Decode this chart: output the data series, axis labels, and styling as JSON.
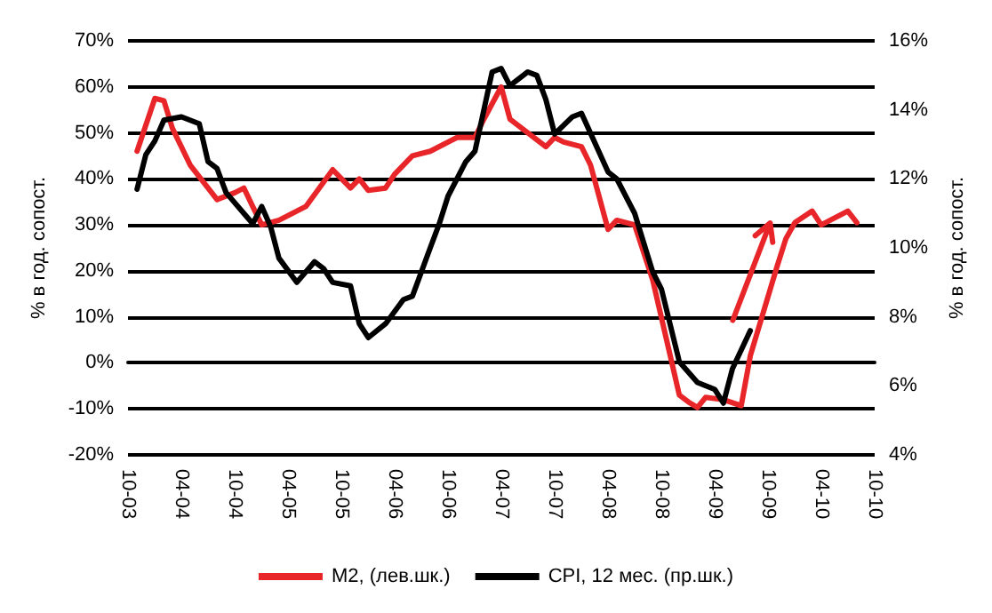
{
  "chart_data": {
    "type": "line",
    "ylabel": "% в год. сопост.",
    "y2label": "% в год. сопост.",
    "series": [
      {
        "name": "M2, (лев.шк.)",
        "color": "#e8262a",
        "axis": "y",
        "x": [
          "2003-11",
          "2004-01",
          "2004-02",
          "2004-03",
          "2004-05",
          "2004-08",
          "2004-10",
          "2004-11",
          "2004-12",
          "2005-01",
          "2005-03",
          "2005-06",
          "2005-09",
          "2005-11",
          "2005-12",
          "2006-01",
          "2006-03",
          "2006-04",
          "2006-06",
          "2006-08",
          "2006-11",
          "2007-01",
          "2007-02",
          "2007-04",
          "2007-05",
          "2007-09",
          "2007-10",
          "2007-11",
          "2008-01",
          "2008-02",
          "2008-04",
          "2008-05",
          "2008-07",
          "2008-09",
          "2008-12",
          "2009-01",
          "2009-02",
          "2009-03",
          "2009-05",
          "2009-07",
          "2009-08",
          "2009-11",
          "2009-12",
          "2010-01",
          "2010-03",
          "2010-04",
          "2010-07",
          "2010-08"
        ],
        "values": [
          46,
          57.5,
          57,
          51,
          43,
          35.5,
          37,
          38,
          34,
          30,
          31,
          34,
          42,
          38,
          40,
          37.5,
          38,
          41,
          45,
          46,
          49,
          49,
          53,
          60,
          53,
          47,
          49,
          48,
          47,
          43,
          29,
          31,
          30,
          18,
          -7,
          -8.5,
          -9.7,
          -7.5,
          -8,
          -9.3,
          1.5,
          21,
          27,
          30.5,
          33,
          30,
          33,
          30.5
        ]
      },
      {
        "name": "CPI, 12 мес. (пр.шк.)",
        "color": "#000000",
        "axis": "y2",
        "x": [
          "2003-11",
          "2003-12",
          "2004-01",
          "2004-02",
          "2004-04",
          "2004-06",
          "2004-07",
          "2004-08",
          "2004-09",
          "2004-12",
          "2005-01",
          "2005-02",
          "2005-03",
          "2005-05",
          "2005-07",
          "2005-08",
          "2005-09",
          "2005-11",
          "2005-12",
          "2006-01",
          "2006-03",
          "2006-05",
          "2006-06",
          "2006-08",
          "2006-09",
          "2006-10",
          "2006-12",
          "2007-01",
          "2007-03",
          "2007-04",
          "2007-05",
          "2007-07",
          "2007-08",
          "2007-09",
          "2007-10",
          "2007-12",
          "2008-01",
          "2008-04",
          "2008-05",
          "2008-07",
          "2008-09",
          "2008-10",
          "2008-12",
          "2009-02",
          "2009-04",
          "2009-05",
          "2009-06",
          "2009-08"
        ],
        "values": [
          11.7,
          12.7,
          13.1,
          13.7,
          13.8,
          13.6,
          12.5,
          12.3,
          11.6,
          10.7,
          11.2,
          10.6,
          9.7,
          9.0,
          9.6,
          9.4,
          9.0,
          8.9,
          7.8,
          7.4,
          7.8,
          8.5,
          8.6,
          10.0,
          10.7,
          11.5,
          12.5,
          12.8,
          15.1,
          15.2,
          14.7,
          15.1,
          15.0,
          14.3,
          13.3,
          13.8,
          13.9,
          12.2,
          12.0,
          11.0,
          9.3,
          8.8,
          6.7,
          6.1,
          5.9,
          5.5,
          6.5,
          7.6
        ]
      }
    ],
    "xlim": [
      "2003-10",
      "2010-10"
    ],
    "xticks": [
      {
        "value": "2003-10",
        "label": "10-03"
      },
      {
        "value": "2004-04",
        "label": "04-04"
      },
      {
        "value": "2004-10",
        "label": "10-04"
      },
      {
        "value": "2005-04",
        "label": "04-05"
      },
      {
        "value": "2005-10",
        "label": "10-05"
      },
      {
        "value": "2006-04",
        "label": "04-06"
      },
      {
        "value": "2006-10",
        "label": "10-06"
      },
      {
        "value": "2007-04",
        "label": "04-07"
      },
      {
        "value": "2007-10",
        "label": "10-07"
      },
      {
        "value": "2008-04",
        "label": "04-08"
      },
      {
        "value": "2008-10",
        "label": "10-08"
      },
      {
        "value": "2009-04",
        "label": "04-09"
      },
      {
        "value": "2009-10",
        "label": "10-09"
      },
      {
        "value": "2010-04",
        "label": "04-10"
      },
      {
        "value": "2010-10",
        "label": "10-10"
      }
    ],
    "ylim": [
      -20,
      70
    ],
    "yticks": [
      {
        "value": -20,
        "label": "-20%"
      },
      {
        "value": -10,
        "label": "-10%"
      },
      {
        "value": 0,
        "label": "0%"
      },
      {
        "value": 10,
        "label": "10%"
      },
      {
        "value": 20,
        "label": "20%"
      },
      {
        "value": 30,
        "label": "30%"
      },
      {
        "value": 40,
        "label": "40%"
      },
      {
        "value": 50,
        "label": "50%"
      },
      {
        "value": 60,
        "label": "60%"
      },
      {
        "value": 70,
        "label": "70%"
      }
    ],
    "y2lim": [
      4,
      16
    ],
    "y2ticks": [
      {
        "value": 4,
        "label": "4%"
      },
      {
        "value": 6,
        "label": "6%"
      },
      {
        "value": 8,
        "label": "8%"
      },
      {
        "value": 10,
        "label": "10%"
      },
      {
        "value": 12,
        "label": "12%"
      },
      {
        "value": 14,
        "label": "14%"
      },
      {
        "value": 16,
        "label": "16%"
      }
    ],
    "grid": "y",
    "legend": "bottom",
    "marker": "none",
    "line_style": "solid"
  }
}
